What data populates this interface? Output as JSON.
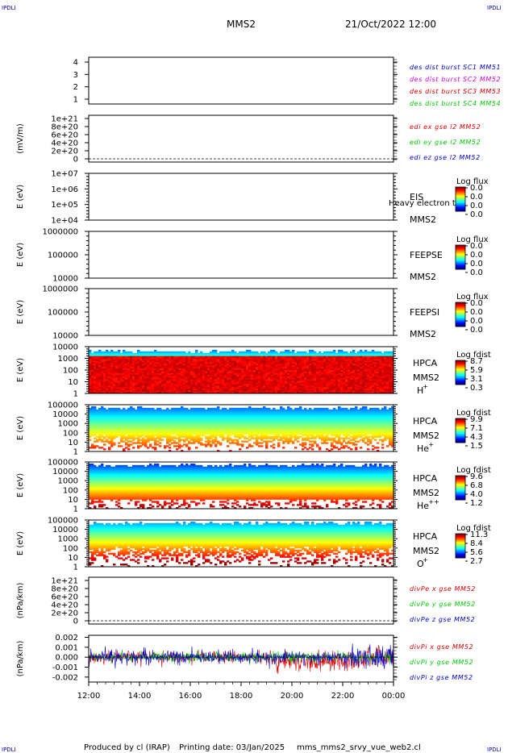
{
  "corner_label": "IPDLI",
  "header": {
    "spacecraft": "MMS2",
    "datetime": "21/Oct/2022 12:00"
  },
  "footer": {
    "producer": "Produced by cl (IRAP)",
    "printing_date": "Printing date: 03/Jan/2025",
    "filename": "mms_mms2_srvy_vue_web2.cl"
  },
  "time_axis": {
    "ticks": [
      "12:00",
      "14:00",
      "16:00",
      "18:00",
      "20:00",
      "22:00",
      "00:00"
    ]
  },
  "colors": {
    "black": "#000000",
    "blue": "#0000cc",
    "green": "#00cc00",
    "red": "#dd0000",
    "magenta": "#dd00dd"
  },
  "chart_data": [
    {
      "id": "burst",
      "type": "line",
      "ylabel": "",
      "yticks": [
        "4",
        "3",
        "2",
        "1"
      ],
      "legend": [
        {
          "text": "des dist burst SC1 MM51",
          "color": "#0000cc"
        },
        {
          "text": "des dist burst SC2 MM52",
          "color": "#dd00dd"
        },
        {
          "text": "des dist burst SC3 MM53",
          "color": "#dd0000"
        },
        {
          "text": "des dist burst SC4 MM54",
          "color": "#00cc00"
        }
      ]
    },
    {
      "id": "edi",
      "type": "line",
      "ylabel": "(mV/m)",
      "yticks": [
        "1e+21",
        "8e+20",
        "6e+20",
        "4e+20",
        "2e+20",
        "0"
      ],
      "legend": [
        {
          "text": "edi ex gse l2 MM52",
          "color": "#dd0000"
        },
        {
          "text": "edi ey gse l2 MM52",
          "color": "#00cc00"
        },
        {
          "text": "edi ez gse l2 MM52",
          "color": "#0000cc"
        }
      ]
    },
    {
      "id": "eis",
      "type": "heatmap",
      "ylabel": "E (eV)",
      "yticks": [
        "1e+07",
        "1e+06",
        "1e+05",
        "1e+04"
      ],
      "labels": [
        "EIS",
        "MMS2"
      ],
      "overlay": "Heavy electron tof",
      "colorbar": {
        "title": "Log flux",
        "ticks": [
          "0.0",
          "0.0",
          "0.0",
          "0.0"
        ]
      }
    },
    {
      "id": "feepse",
      "type": "heatmap",
      "ylabel": "E (eV)",
      "yticks": [
        "1000000",
        "100000",
        "10000"
      ],
      "labels": [
        "FEEPSE",
        "MMS2"
      ],
      "colorbar": {
        "title": "Log flux",
        "ticks": [
          "0.0",
          "0.0",
          "0.0",
          "0.0"
        ]
      }
    },
    {
      "id": "feepsi",
      "type": "heatmap",
      "ylabel": "E (eV)",
      "yticks": [
        "1000000",
        "100000",
        "10000"
      ],
      "labels": [
        "FEEPSI",
        "MMS2"
      ],
      "colorbar": {
        "title": "Log flux",
        "ticks": [
          "0.0",
          "0.0",
          "0.0",
          "0.0"
        ]
      }
    },
    {
      "id": "hpca_h",
      "type": "heatmap",
      "ylabel": "E (eV)",
      "yticks": [
        "10000",
        "1000",
        "100",
        "10",
        "1"
      ],
      "labels": [
        "HPCA",
        "MMS2"
      ],
      "species": "H",
      "charge": "+",
      "colorbar": {
        "title": "Log fdist",
        "ticks": [
          "8.7",
          "5.9",
          "3.1",
          "0.3"
        ]
      }
    },
    {
      "id": "hpca_he1",
      "type": "heatmap",
      "ylabel": "E (eV)",
      "yticks": [
        "100000",
        "10000",
        "1000",
        "100",
        "10",
        "1"
      ],
      "labels": [
        "HPCA",
        "MMS2"
      ],
      "species": "He",
      "charge": "+",
      "colorbar": {
        "title": "Log fdist",
        "ticks": [
          "9.9",
          "7.1",
          "4.3",
          "1.5"
        ]
      }
    },
    {
      "id": "hpca_he2",
      "type": "heatmap",
      "ylabel": "E (eV)",
      "yticks": [
        "100000",
        "10000",
        "1000",
        "100",
        "10",
        "1"
      ],
      "labels": [
        "HPCA",
        "MMS2"
      ],
      "species": "He",
      "charge": "++",
      "colorbar": {
        "title": "Log fdist",
        "ticks": [
          "9.6",
          "6.8",
          "4.0",
          "1.2"
        ]
      }
    },
    {
      "id": "hpca_o",
      "type": "heatmap",
      "ylabel": "E (eV)",
      "yticks": [
        "100000",
        "10000",
        "1000",
        "100",
        "10",
        "1"
      ],
      "labels": [
        "HPCA",
        "MMS2"
      ],
      "species": "O",
      "charge": "+",
      "colorbar": {
        "title": "Log fdist",
        "ticks": [
          "11.3",
          "8.4",
          "5.6",
          "2.7"
        ]
      }
    },
    {
      "id": "divpe",
      "type": "line",
      "ylabel": "(nPa/km)",
      "yticks": [
        "1e+21",
        "8e+20",
        "6e+20",
        "4e+20",
        "2e+20",
        "0"
      ],
      "legend": [
        {
          "text": "divPe x gse MM52",
          "color": "#dd0000"
        },
        {
          "text": "divPe y gse MM52",
          "color": "#00cc00"
        },
        {
          "text": "divPe z gse MM52",
          "color": "#0000cc"
        }
      ]
    },
    {
      "id": "divpi",
      "type": "line",
      "ylabel": "(nPa/km)",
      "yticks": [
        "0.002",
        "0.001",
        "0.000",
        "-0.001",
        "-0.002"
      ],
      "ylim": [
        -0.0025,
        0.0022
      ],
      "legend": [
        {
          "text": "divPi x gse MM52",
          "color": "#dd0000"
        },
        {
          "text": "divPi y gse MM52",
          "color": "#00cc00"
        },
        {
          "text": "divPi z gse MM52",
          "color": "#0000cc"
        }
      ]
    }
  ]
}
